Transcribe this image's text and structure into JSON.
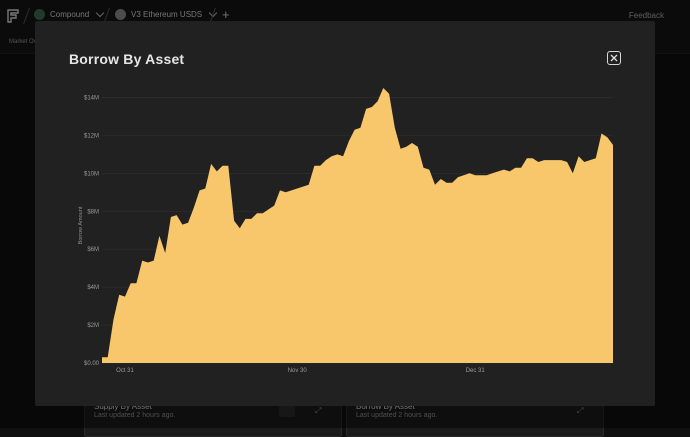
{
  "topbar": {
    "crumbs": [
      {
        "label": "Compound",
        "icon": "compound-icon"
      },
      {
        "label": "V3 Ethereum USDS",
        "icon": "ethereum-icon"
      }
    ],
    "feedback_label": "Feedback"
  },
  "subbar": {
    "label": "Market Ov"
  },
  "background_cards": [
    {
      "title": "Supply By Asset",
      "subtitle": "Last updated 2 hours ago."
    },
    {
      "title": "Borrow By Asset",
      "subtitle": "Last updated 2 hours ago."
    }
  ],
  "modal": {
    "title": "Borrow By Asset",
    "close_icon": "close-icon"
  },
  "colors": {
    "area_fill": "#f9c76b",
    "modal_bg": "#212121",
    "page_bg": "#0f0f0f"
  },
  "chart_data": {
    "type": "area",
    "title": "",
    "xlabel": "",
    "ylabel": "Borrow Amount",
    "ylim": [
      0,
      14.5
    ],
    "y_unit": "M",
    "y_ticks": [
      {
        "value": 0,
        "label": "$0.00"
      },
      {
        "value": 2,
        "label": "$2M"
      },
      {
        "value": 4,
        "label": "$4M"
      },
      {
        "value": 6,
        "label": "$6M"
      },
      {
        "value": 8,
        "label": "$8M"
      },
      {
        "value": 10,
        "label": "$10M"
      },
      {
        "value": 12,
        "label": "$12M"
      },
      {
        "value": 14,
        "label": "$14M"
      }
    ],
    "x_ticks": [
      {
        "index": 4,
        "label": "Oct 31"
      },
      {
        "index": 34,
        "label": "Nov 30"
      },
      {
        "index": 65,
        "label": "Dec 31"
      }
    ],
    "grid": true,
    "series": [
      {
        "values": [
          0.3,
          0.3,
          2.3,
          3.6,
          3.5,
          4.2,
          4.2,
          5.4,
          5.3,
          5.4,
          6.7,
          5.8,
          7.7,
          7.8,
          7.3,
          7.4,
          8.2,
          9.1,
          9.2,
          10.5,
          10.1,
          10.4,
          10.4,
          7.5,
          7.1,
          7.6,
          7.6,
          7.9,
          7.9,
          8.1,
          8.3,
          9.1,
          9.0,
          9.1,
          9.2,
          9.3,
          9.4,
          10.4,
          10.4,
          10.7,
          10.9,
          11.0,
          10.9,
          11.7,
          12.3,
          12.4,
          13.4,
          13.5,
          13.8,
          14.5,
          14.2,
          12.4,
          11.3,
          11.4,
          11.6,
          11.4,
          10.3,
          10.2,
          9.4,
          9.7,
          9.5,
          9.5,
          9.8,
          9.9,
          10.0,
          9.9,
          9.9,
          9.9,
          10.0,
          10.1,
          10.2,
          10.1,
          10.3,
          10.3,
          10.8,
          10.8,
          10.6,
          10.7,
          10.7,
          10.7,
          10.7,
          10.6,
          10.0,
          10.9,
          10.6,
          10.7,
          10.8,
          12.1,
          11.9,
          11.5
        ]
      }
    ]
  }
}
